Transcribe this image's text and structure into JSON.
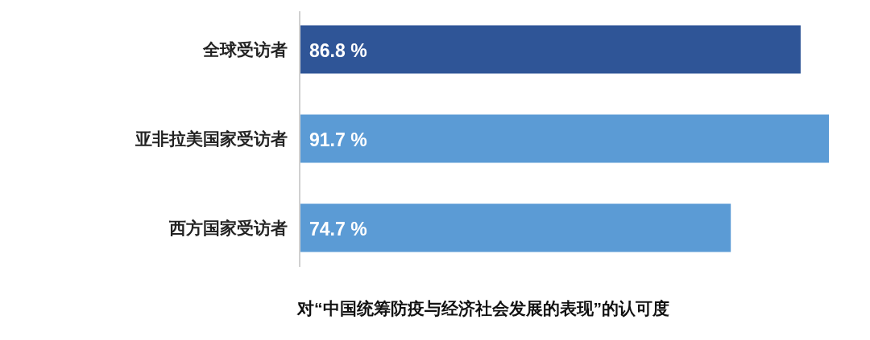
{
  "chart_data": {
    "type": "bar",
    "orientation": "horizontal",
    "categories": [
      "全球受访者",
      "亚非拉美国家受访者",
      "西方国家受访者"
    ],
    "values": [
      86.8,
      91.7,
      74.7
    ],
    "colors": [
      "#2f5597",
      "#5b9bd5",
      "#5b9bd5"
    ],
    "value_labels": [
      "86.8 %",
      "91.7 %",
      "74.7 %"
    ],
    "xlabel": "对“中国统筹防疫与经济社会发展的表现”的认可度"
  }
}
